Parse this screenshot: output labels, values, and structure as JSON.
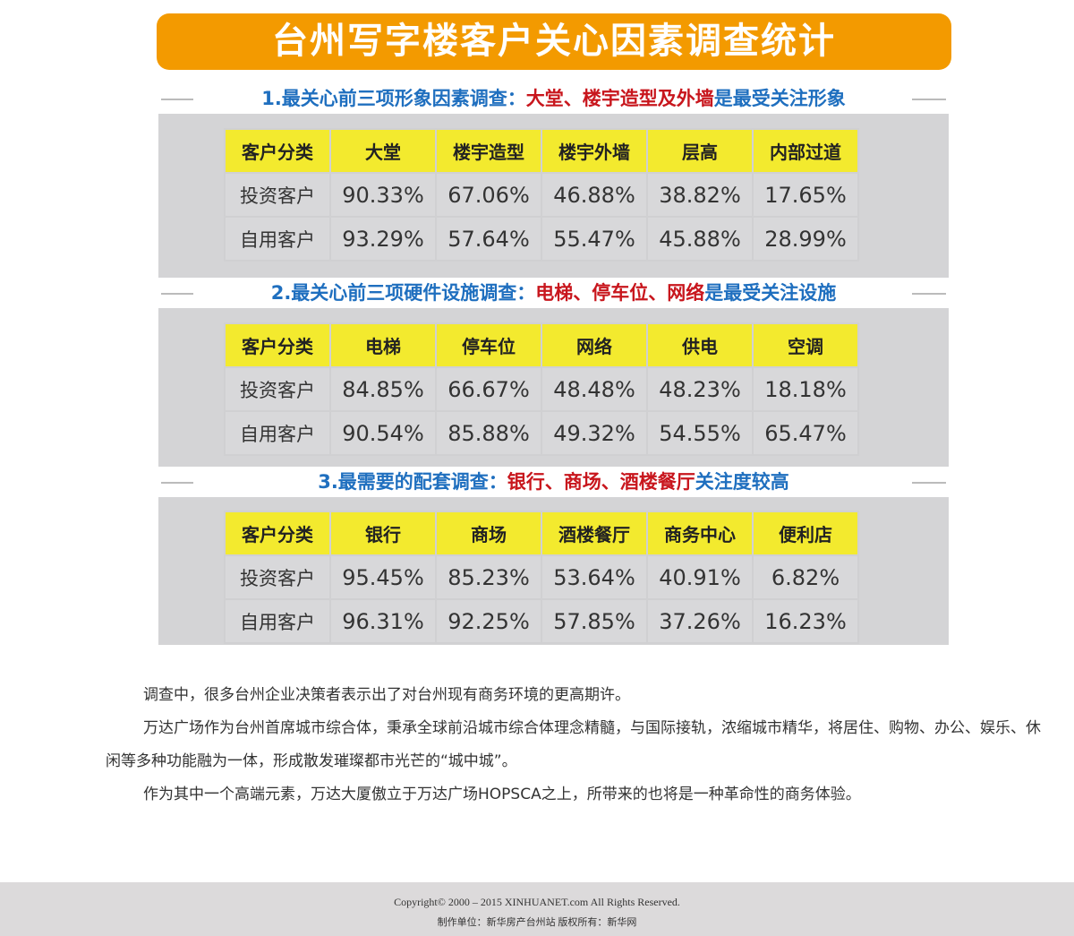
{
  "title": "台州写字楼客户关心因素调查统计",
  "sections": [
    {
      "heading_pre": "1.最关心前三项形象因素调查：",
      "heading_red": "大堂、楼宇造型及外墙",
      "heading_post": "是最受关注形象",
      "headers": [
        "客户分类",
        "大堂",
        "楼宇造型",
        "楼宇外墙",
        "层高",
        "内部过道"
      ],
      "rows": [
        [
          "投资客户",
          "90.33%",
          "67.06%",
          "46.88%",
          "38.82%",
          "17.65%"
        ],
        [
          "自用客户",
          "93.29%",
          "57.64%",
          "55.47%",
          "45.88%",
          "28.99%"
        ]
      ]
    },
    {
      "heading_pre": "2.最关心前三项硬件设施调查：",
      "heading_red": "电梯、停车位、网络",
      "heading_post": "是最受关注设施",
      "headers": [
        "客户分类",
        "电梯",
        "停车位",
        "网络",
        "供电",
        "空调"
      ],
      "rows": [
        [
          "投资客户",
          "84.85%",
          "66.67%",
          "48.48%",
          "48.23%",
          "18.18%"
        ],
        [
          "自用客户",
          "90.54%",
          "85.88%",
          "49.32%",
          "54.55%",
          "65.47%"
        ]
      ]
    },
    {
      "heading_pre": "3.最需要的配套调查：",
      "heading_red": "银行、商场、酒楼餐厅",
      "heading_post": "关注度较高",
      "headers": [
        "客户分类",
        "银行",
        "商场",
        "酒楼餐厅",
        "商务中心",
        "便利店"
      ],
      "rows": [
        [
          "投资客户",
          "95.45%",
          "85.23%",
          "53.64%",
          "40.91%",
          "6.82%"
        ],
        [
          "自用客户",
          "96.31%",
          "92.25%",
          "57.85%",
          "37.26%",
          "16.23%"
        ]
      ]
    }
  ],
  "paragraphs": [
    "调查中，很多台州企业决策者表示出了对台州现有商务环境的更高期许。",
    "万达广场作为台州首席城市综合体，秉承全球前沿城市综合体理念精髓，与国际接轨，浓缩城市精华，将居住、购物、办公、娱乐、休闲等多种功能融为一体，形成散发璀璨都市光芒的“城中城”。",
    "作为其中一个高端元素，万达大厦傲立于万达广场HOPSCA之上，所带来的也将是一种革命性的商务体验。"
  ],
  "footer": {
    "copyright": "Copyright© 2000 – 2015 XINHUANET.com    All Rights Reserved.",
    "credits": "制作单位：新华房产台州站    版权所有：新华网"
  }
}
